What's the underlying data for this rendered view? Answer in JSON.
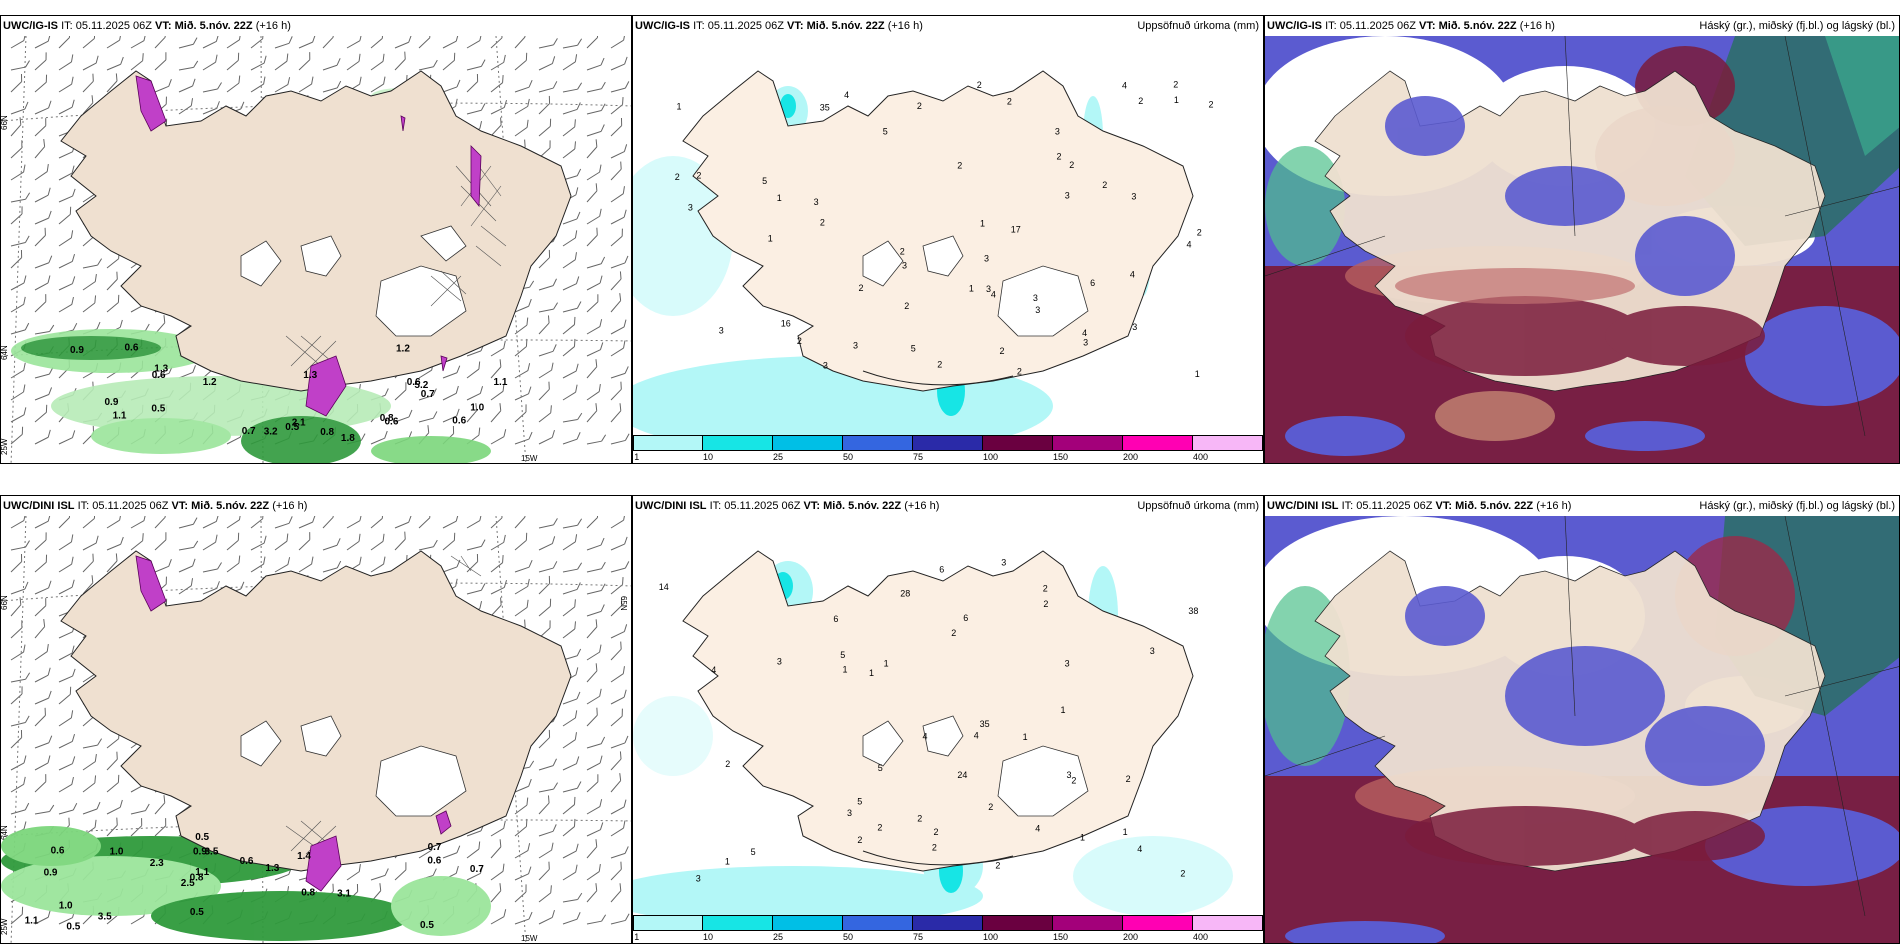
{
  "panels": {
    "p1": {
      "model": "UWC/IG-IS",
      "it": "IT: 05.11.2025 06Z",
      "vt": "VT: Mið. 5.nóv. 22Z",
      "lead": "(+16 h)",
      "right": ""
    },
    "p2": {
      "model": "UWC/IG-IS",
      "it": "IT: 05.11.2025 06Z",
      "vt": "VT: Mið. 5.nóv. 22Z",
      "lead": "(+16 h)",
      "right": "Uppsöfnuð úrkoma (mm)"
    },
    "p3": {
      "model": "UWC/IG-IS",
      "it": "IT: 05.11.2025 06Z",
      "vt": "VT: Mið. 5.nóv. 22Z",
      "lead": "(+16 h)",
      "right": "Háský (gr.), miðský (fj.bl.) og lágský (bl.)"
    },
    "p4": {
      "model": "UWC/DINI ISL",
      "it": "IT: 05.11.2025 06Z",
      "vt": "VT: Mið. 5.nóv. 22Z",
      "lead": "(+16 h)",
      "right": ""
    },
    "p5": {
      "model": "UWC/DINI ISL",
      "it": "IT: 05.11.2025 06Z",
      "vt": "VT: Mið. 5.nóv. 22Z",
      "lead": "(+16 h)",
      "right": "Uppsöfnuð úrkoma (mm)"
    },
    "p6": {
      "model": "UWC/DINI ISL",
      "it": "IT: 05.11.2025 06Z",
      "vt": "VT: Mið. 5.nóv. 22Z",
      "lead": "(+16 h)",
      "right": "Háský (gr.), miðský (fj.bl.) og lágský (bl.)"
    }
  },
  "gridlabels": {
    "lat66": "66N",
    "lat64": "64N",
    "lon25": "25W",
    "lon15": "15W",
    "lat65": "65N"
  },
  "colorbar": {
    "labels": [
      "1",
      "10",
      "25",
      "50",
      "75",
      "100",
      "150",
      "200",
      "400"
    ],
    "colors": [
      "#b3f7f7",
      "#17e5e5",
      "#00bfe6",
      "#3466e0",
      "#2a2aa8",
      "#6a0040",
      "#a3007a",
      "#ff00b3",
      "#f7b7f7"
    ]
  },
  "precip_ig": [
    "2",
    "35",
    "16",
    "5",
    "2",
    "2",
    "4",
    "2",
    "3",
    "2",
    "3",
    "2",
    "2",
    "3",
    "3",
    "4",
    "3",
    "2",
    "6",
    "3",
    "4",
    "4",
    "3",
    "3",
    "17",
    "2",
    "1",
    "1",
    "2",
    "5",
    "3",
    "2",
    "3",
    "3",
    "4",
    "5",
    "2",
    "2",
    "2",
    "3",
    "2",
    "1",
    "2",
    "3",
    "2",
    "4",
    "1",
    "2",
    "3",
    "1",
    "2",
    "2",
    "3",
    "2",
    "1",
    "1"
  ],
  "precip_dini": [
    "1",
    "2",
    "35",
    "24",
    "28",
    "3",
    "1",
    "2",
    "1",
    "3",
    "2",
    "1",
    "2",
    "6",
    "4",
    "5",
    "3",
    "2",
    "4",
    "38",
    "14",
    "5",
    "2",
    "1",
    "2",
    "2",
    "1",
    "2",
    "3",
    "2",
    "4",
    "5",
    "6",
    "3",
    "4",
    "2",
    "2",
    "3",
    "4",
    "2",
    "3",
    "5",
    "6",
    "2",
    "1",
    "1"
  ],
  "temp_ig": [
    "0.7",
    "2.1",
    "1.3",
    "0.9",
    "1.1",
    "1.1",
    "0.5",
    "0.9",
    "0.6",
    "1.3",
    "0.5",
    "0.6",
    "3.2",
    "1.8",
    "1.2",
    "0.8",
    "0.8",
    "0.6",
    "1.0",
    "5.2",
    "0.6",
    "0.7",
    "0.6",
    "1.2"
  ],
  "temp_dini": [
    "0.5",
    "0.9",
    "0.7",
    "2.5",
    "1.4",
    "0.5",
    "0.9",
    "0.6",
    "1.0",
    "2.3",
    "1.1",
    "3.5",
    "3.5",
    "1.3",
    "3.1",
    "0.6",
    "0.5",
    "0.7",
    "0.8",
    "0.6",
    "0.8",
    "0.5",
    "1.1",
    "1.0"
  ]
}
